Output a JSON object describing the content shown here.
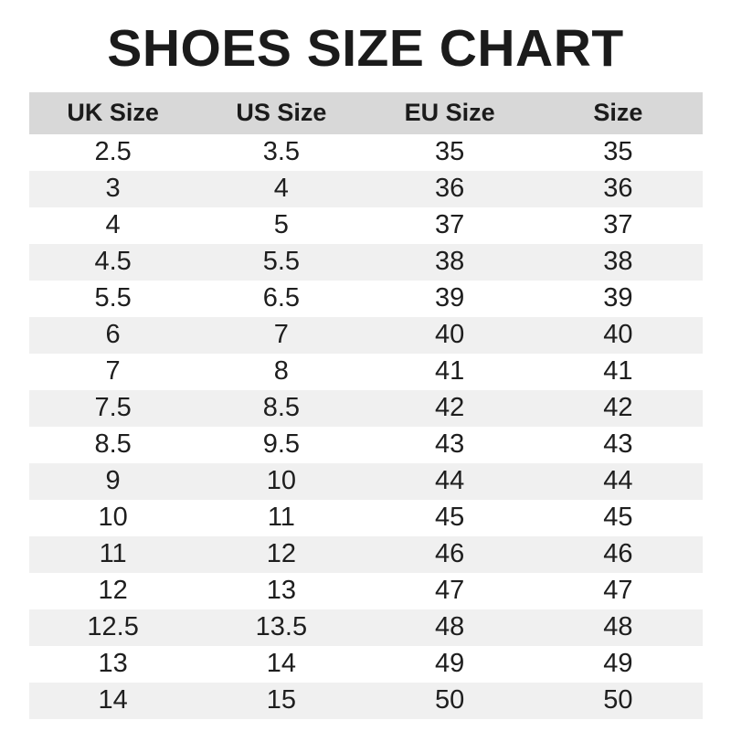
{
  "title": "SHOES SIZE CHART",
  "chart_data": {
    "type": "table",
    "title": "SHOES SIZE CHART",
    "columns": [
      "UK Size",
      "US Size",
      "EU Size",
      "Size"
    ],
    "rows": [
      [
        "2.5",
        "3.5",
        "35",
        "35"
      ],
      [
        "3",
        "4",
        "36",
        "36"
      ],
      [
        "4",
        "5",
        "37",
        "37"
      ],
      [
        "4.5",
        "5.5",
        "38",
        "38"
      ],
      [
        "5.5",
        "6.5",
        "39",
        "39"
      ],
      [
        "6",
        "7",
        "40",
        "40"
      ],
      [
        "7",
        "8",
        "41",
        "41"
      ],
      [
        "7.5",
        "8.5",
        "42",
        "42"
      ],
      [
        "8.5",
        "9.5",
        "43",
        "43"
      ],
      [
        "9",
        "10",
        "44",
        "44"
      ],
      [
        "10",
        "11",
        "45",
        "45"
      ],
      [
        "11",
        "12",
        "46",
        "46"
      ],
      [
        "12",
        "13",
        "47",
        "47"
      ],
      [
        "12.5",
        "13.5",
        "48",
        "48"
      ],
      [
        "13",
        "14",
        "49",
        "49"
      ],
      [
        "14",
        "15",
        "50",
        "50"
      ]
    ],
    "layout": {
      "zebra_striping": true,
      "header_position": "top",
      "cell_alignment": "center"
    }
  },
  "colors": {
    "header_bg": "#d8d8d8",
    "zebra_bg": "#f0f0f0",
    "row_bg": "#ffffff",
    "text": "#1e1e1e",
    "title": "#1b1b1b",
    "background": "#ffffff"
  }
}
